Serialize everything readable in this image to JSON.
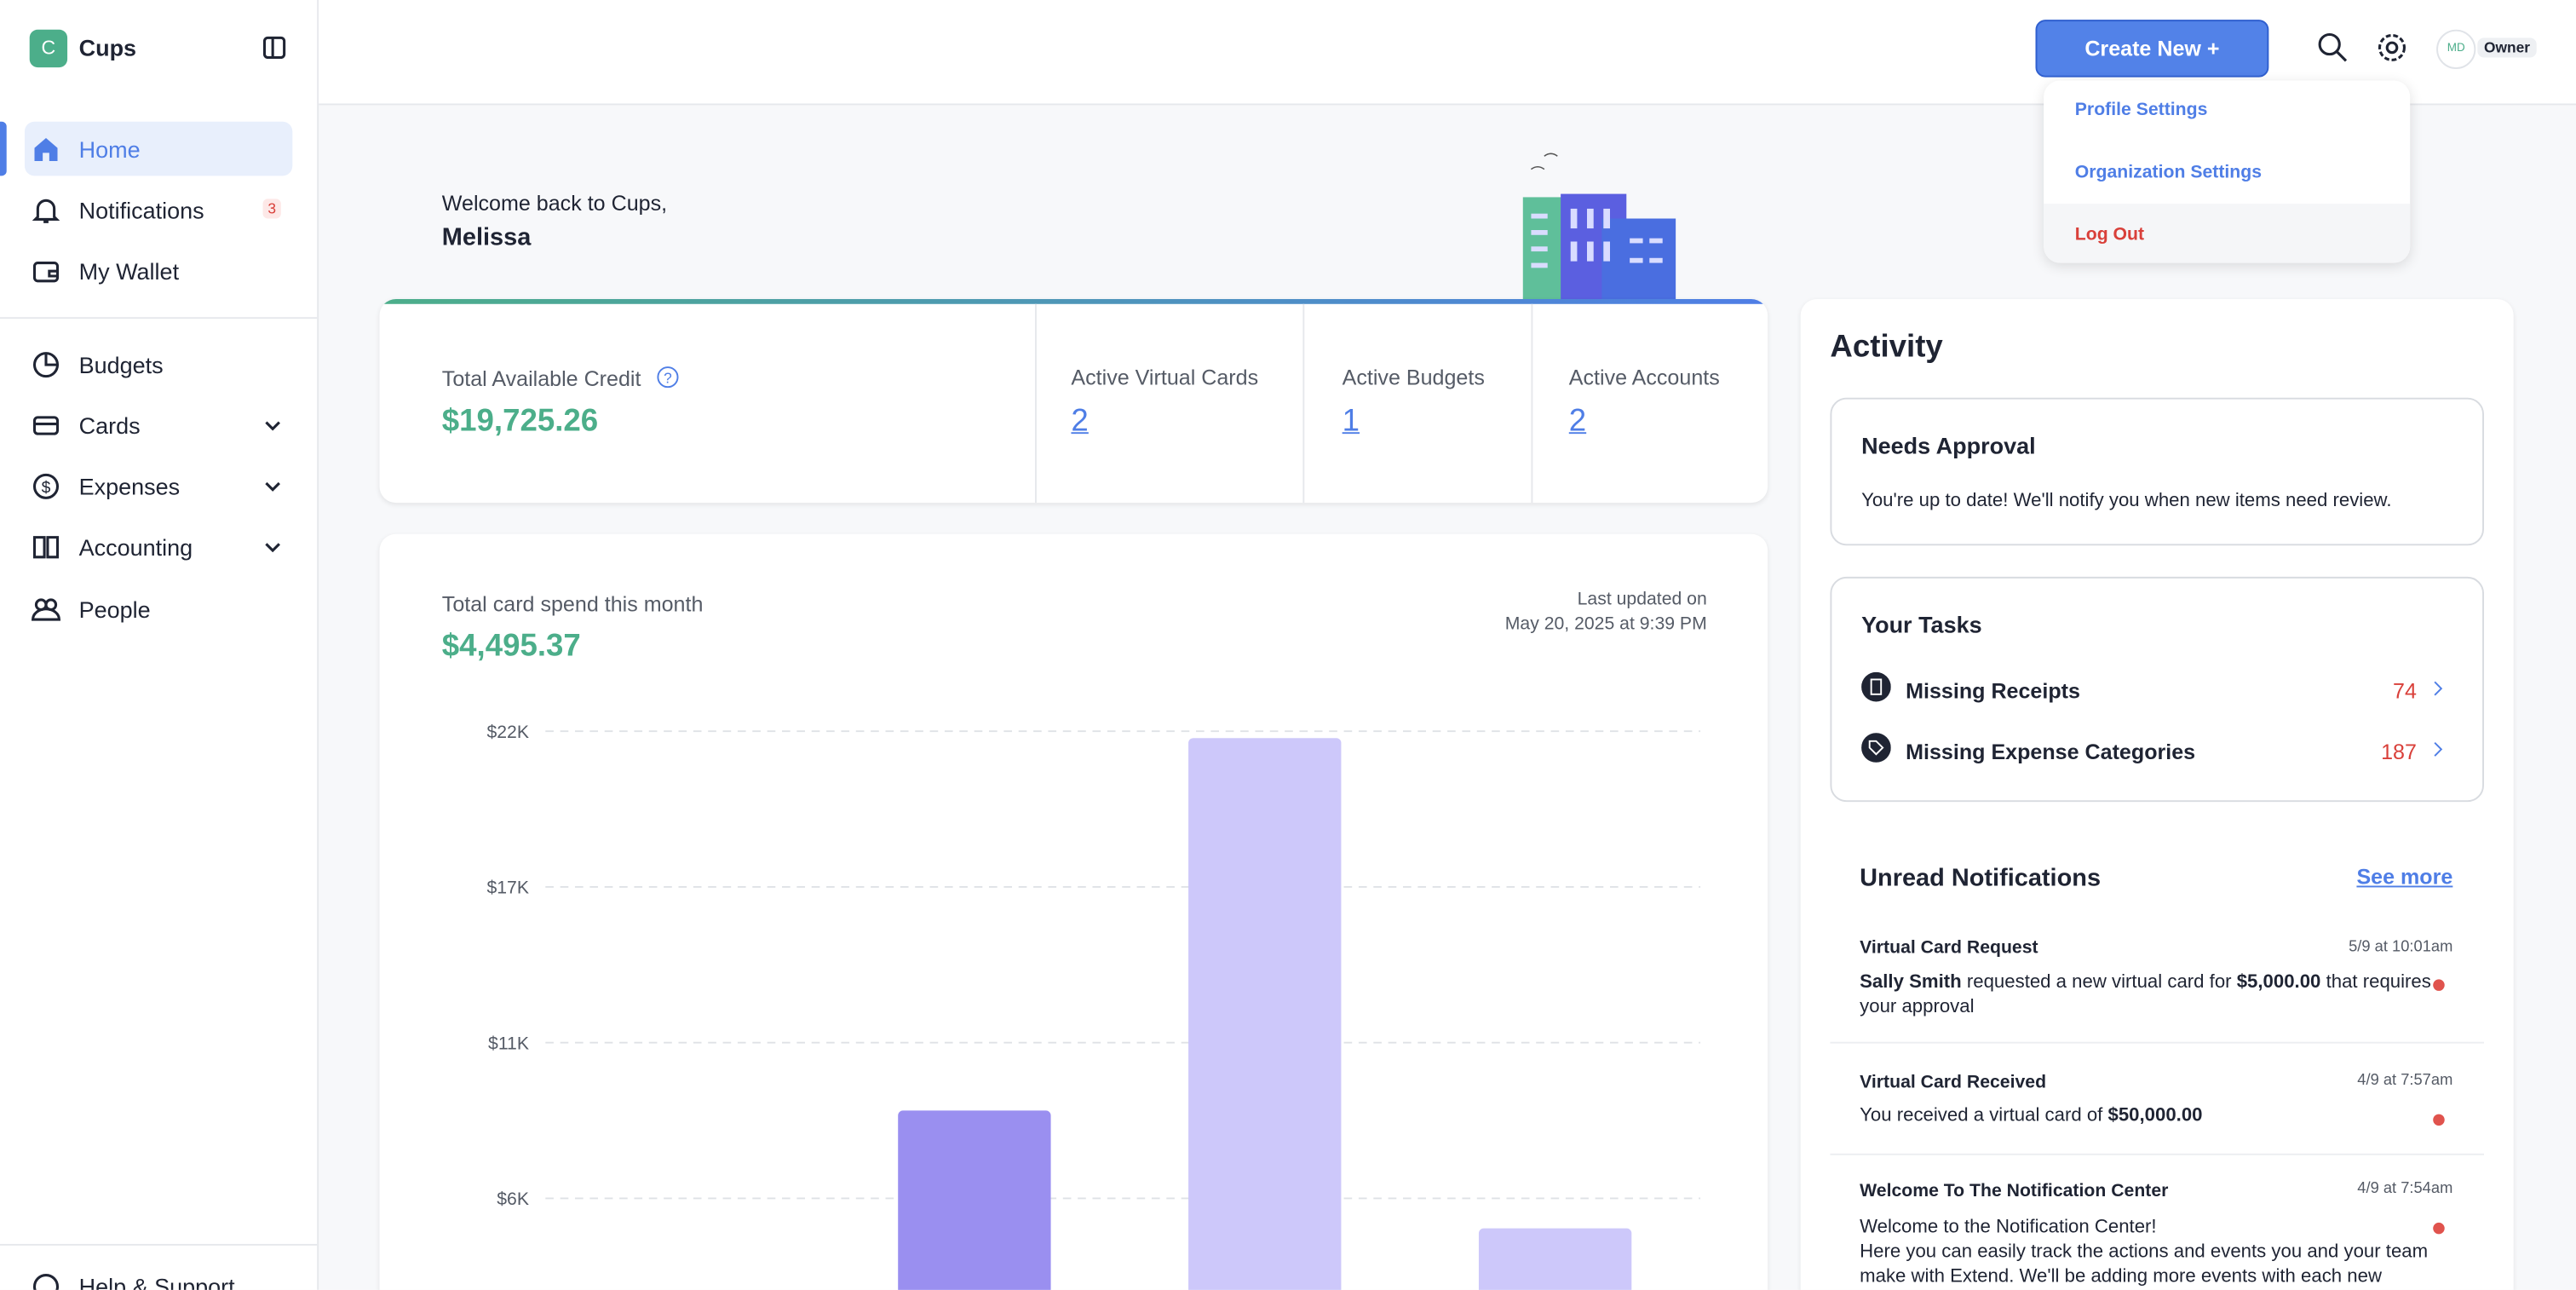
{
  "sidebar": {
    "logo": "C",
    "brand": "Cups",
    "nav": [
      {
        "label": "Home"
      },
      {
        "label": "Notifications",
        "badge": 3
      },
      {
        "label": "My Wallet"
      },
      {
        "label": "Budgets"
      },
      {
        "label": "Cards"
      },
      {
        "label": "Expenses"
      },
      {
        "label": "Accounting"
      },
      {
        "label": "People"
      }
    ],
    "help": "Help & Support"
  },
  "header": {
    "create_button": "Create New +",
    "avatar": "MD",
    "role": "Owner",
    "menu": [
      "Profile Settings",
      "Organization Settings",
      "Log Out"
    ]
  },
  "welcome": {
    "greeting": "Welcome back to Cups,",
    "name": "Melissa"
  },
  "stats": {
    "credit_label": "Total Available Credit",
    "credit_value": "$19,725.26",
    "items": [
      {
        "label": "Active Virtual Cards",
        "value": 2
      },
      {
        "label": "Active Budgets",
        "value": 1
      },
      {
        "label": "Active Accounts",
        "value": 2
      }
    ]
  },
  "spend": {
    "label": "Total card spend this month",
    "value": "$4,495.37",
    "updated_label": "Last updated on",
    "updated_date": "May 20, 2025 at 9:39 PM",
    "chart_data": {
      "type": "bar",
      "values": [
        0,
        8600,
        21760,
        4440
      ],
      "colors": [
        "#cdc8fa",
        "#9a8ff0",
        "#cdc8fa",
        "#cdc8fa"
      ],
      "ylim": [
        0,
        22000
      ],
      "yticks": [
        {
          "value": 5500,
          "label": "$6K"
        },
        {
          "value": 11000,
          "label": "$11K"
        },
        {
          "value": 16500,
          "label": "$17K"
        },
        {
          "value": 22000,
          "label": "$22K"
        }
      ],
      "grid": true
    }
  },
  "activity": {
    "title": "Activity",
    "approval": {
      "title": "Needs Approval",
      "text": "You're up to date! We'll notify you when new items need review."
    },
    "tasks": {
      "title": "Your Tasks",
      "items": [
        {
          "label": "Missing Receipts",
          "count": 74
        },
        {
          "label": "Missing Expense Categories",
          "count": 187
        }
      ]
    },
    "notifications": {
      "title": "Unread Notifications",
      "see_more": "See more",
      "items": [
        {
          "title": "Virtual Card Request",
          "time": "5/9 at 10:01am",
          "body": [
            {
              "text": "Sally Smith",
              "bold": true
            },
            {
              "text": " requested a new virtual card for ",
              "bold": false
            },
            {
              "text": "$5,000.00",
              "bold": true
            },
            {
              "text": " that requires your approval",
              "bold": false
            }
          ]
        },
        {
          "title": "Virtual Card Received",
          "time": "4/9 at 7:57am",
          "body": [
            {
              "text": "You received a virtual card of ",
              "bold": false
            },
            {
              "text": "$50,000.00",
              "bold": true
            }
          ]
        },
        {
          "title": "Welcome To The Notification Center",
          "time": "4/9 at 7:54am",
          "body": [
            {
              "text": "Welcome to the Notification Center!",
              "bold": false
            },
            {
              "text": "Here you can easily track the actions and events you and your team make with Extend. We'll be adding more events with each new",
              "bold": false
            }
          ]
        }
      ]
    }
  }
}
